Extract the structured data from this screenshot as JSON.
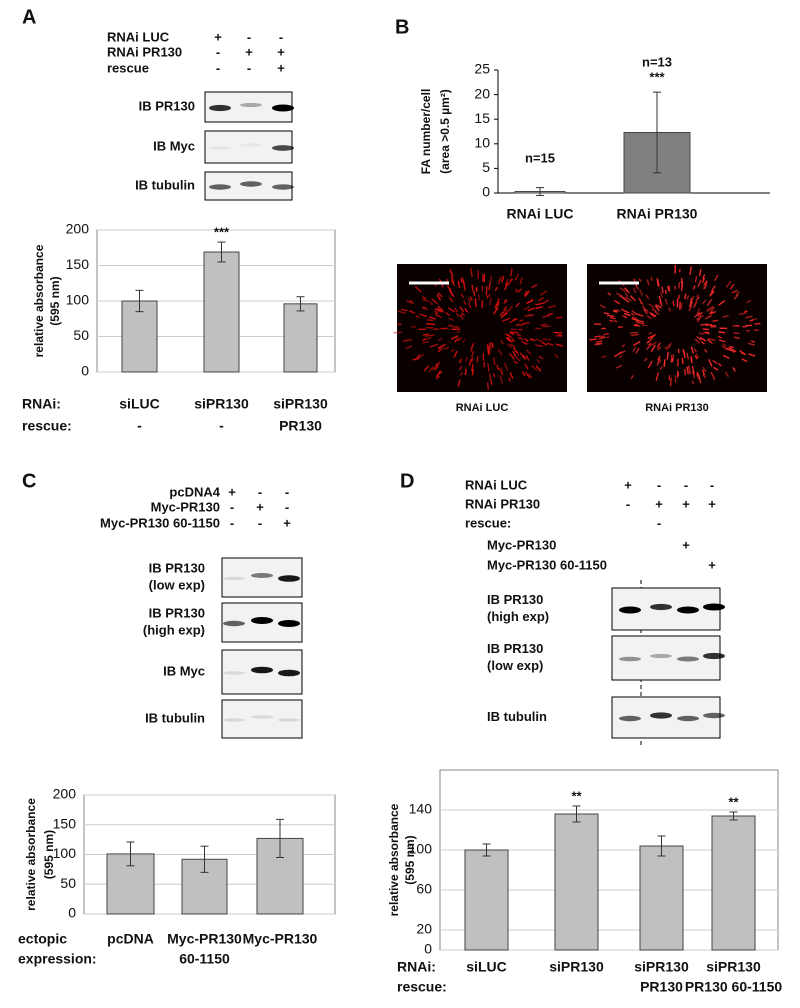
{
  "panels": [
    {
      "label": "A",
      "conditions": [
        {
          "name": "RNAi LUC",
          "signs": [
            "+",
            "-",
            "-"
          ]
        },
        {
          "name": "RNAi PR130",
          "signs": [
            "-",
            "+",
            "+"
          ]
        },
        {
          "name": "rescue",
          "signs": [
            "-",
            "-",
            "+"
          ]
        }
      ],
      "blots": [
        [
          "IB PR130"
        ],
        [
          "IB Myc"
        ],
        [
          "IB tubulin"
        ]
      ]
    },
    {
      "label": "B",
      "micrographs": [
        "RNAi LUC",
        "RNAi PR130"
      ]
    },
    {
      "label": "C",
      "conditions": [
        {
          "name": "pcDNA4",
          "signs": [
            "+",
            "-",
            "-"
          ]
        },
        {
          "name": "Myc-PR130",
          "signs": [
            "-",
            "+",
            "-"
          ]
        },
        {
          "name": "Myc-PR130 60-1150",
          "signs": [
            "-",
            "-",
            "+"
          ]
        }
      ],
      "blots": [
        [
          "IB PR130",
          "(low exp)"
        ],
        [
          "IB PR130",
          "(high exp)"
        ],
        [
          "IB Myc"
        ],
        [
          "IB tubulin"
        ]
      ]
    },
    {
      "label": "D",
      "conditions": [
        {
          "name": "RNAi LUC",
          "signs": [
            "+",
            "-",
            "-",
            "-"
          ]
        },
        {
          "name": "RNAi PR130",
          "signs": [
            "-",
            "+",
            "+",
            "+"
          ]
        },
        {
          "name": "rescue:",
          "signs": [
            null,
            "-",
            null,
            null
          ]
        },
        {
          "name": "Myc-PR130",
          "signs": [
            null,
            null,
            "+",
            null
          ]
        },
        {
          "name": "Myc-PR130 60-1150",
          "signs": [
            null,
            null,
            null,
            "+"
          ]
        }
      ],
      "blots": [
        [
          "IB PR130",
          "(high exp)"
        ],
        [
          "IB PR130",
          "(low exp)"
        ],
        [
          "IB tubulin"
        ]
      ]
    }
  ],
  "chart_data": [
    {
      "type": "bar",
      "ylabel": [
        "relative absorbance",
        "(595 nm)"
      ],
      "ylim": [
        0,
        200
      ],
      "yticks": [
        0,
        50,
        100,
        150,
        200
      ],
      "grid": true,
      "row_labels": [
        "RNAi:",
        "rescue:"
      ],
      "categories": [
        "siLUC",
        "siPR130",
        "siPR130"
      ],
      "categories_row2": [
        "-",
        "-",
        "PR130"
      ],
      "values": [
        100,
        169,
        96
      ],
      "errors": [
        15,
        14,
        10
      ],
      "annotations": [
        null,
        "***",
        null
      ],
      "colors": [
        "#c0c0c0",
        "#c0c0c0",
        "#c0c0c0"
      ]
    },
    {
      "type": "bar",
      "ylabel": [
        "FA number/cell",
        "(area >0.5 µm²)"
      ],
      "ylim": [
        0,
        25
      ],
      "yticks": [
        0,
        5,
        10,
        15,
        20,
        25
      ],
      "grid": false,
      "categories": [
        "RNAi LUC",
        "RNAi PR130"
      ],
      "values": [
        0.3,
        12.3
      ],
      "errors": [
        0.8,
        8.2
      ],
      "annotations": [
        null,
        "***"
      ],
      "n_labels": [
        "n=15",
        "n=13"
      ],
      "colors": [
        "#c0c0c0",
        "#808080"
      ]
    },
    {
      "type": "bar",
      "ylabel": [
        "relative absorbance",
        "(595 nm)"
      ],
      "ylim": [
        0,
        200
      ],
      "yticks": [
        0,
        50,
        100,
        150,
        200
      ],
      "grid": true,
      "row_labels": [
        "ectopic",
        "expression:"
      ],
      "categories": [
        "pcDNA",
        "Myc-PR130",
        "Myc-PR130"
      ],
      "categories_row2": [
        null,
        "60-1150",
        null
      ],
      "values": [
        101,
        92,
        127
      ],
      "errors": [
        20,
        22,
        32
      ],
      "annotations": [
        null,
        null,
        null
      ],
      "colors": [
        "#c0c0c0",
        "#c0c0c0",
        "#c0c0c0"
      ]
    },
    {
      "type": "bar",
      "ylabel": [
        "relative absorbance",
        "(595 nm)"
      ],
      "ylim": [
        0,
        180
      ],
      "yticks": [
        0,
        20,
        60,
        100,
        140
      ],
      "grid": true,
      "row_labels": [
        "RNAi:",
        "rescue:"
      ],
      "categories": [
        "siLUC",
        "siPR130",
        "siPR130",
        "siPR130"
      ],
      "categories_row2": [
        null,
        null,
        "PR130",
        "PR130 60-1150"
      ],
      "values": [
        100,
        136,
        104,
        134
      ],
      "errors": [
        6,
        8,
        10,
        4
      ],
      "annotations": [
        null,
        "**",
        null,
        "**"
      ],
      "colors": [
        "#c0c0c0",
        "#c0c0c0",
        "#c0c0c0",
        "#c0c0c0"
      ]
    }
  ]
}
